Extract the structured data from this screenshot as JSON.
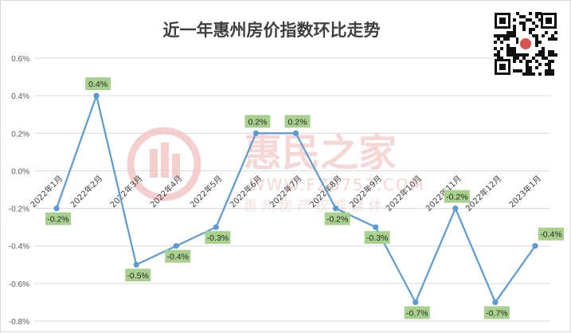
{
  "chart_data": {
    "type": "line",
    "title": "近一年惠州房价指数环比走势",
    "categories": [
      "2022年1月",
      "2022年2月",
      "2022年3月",
      "2022年4月",
      "2022年5月",
      "2022年6月",
      "2022年7月",
      "2022年8月",
      "2022年9月",
      "2022年10月",
      "2022年11月",
      "2022年12月",
      "2023年1月"
    ],
    "values": [
      -0.2,
      0.4,
      -0.5,
      -0.4,
      -0.3,
      0.2,
      0.2,
      -0.2,
      -0.3,
      -0.7,
      -0.2,
      -0.7,
      -0.4
    ],
    "data_labels": [
      "-0.2%",
      "0.4%",
      "-0.5%",
      "-0.4%",
      "-0.3%",
      "0.2%",
      "0.2%",
      "-0.2%",
      "-0.3%",
      "-0.7%",
      "-0.2%",
      "-0.7%",
      "-0.4%"
    ],
    "yticks": [
      "0.6%",
      "0.4%",
      "0.2%",
      "0.0%",
      "-0.2%",
      "-0.4%",
      "-0.6%",
      "-0.8%"
    ],
    "ylim": [
      -0.8,
      0.6
    ],
    "grid": true,
    "line_color": "#5b9bd5",
    "label_bg_color": "#a9d18e"
  },
  "watermark": {
    "brand": "惠民之家",
    "url": "WWW.FZ0752.COM",
    "slogan": "惠 州 房 产 权 威 媒 体"
  },
  "qr_icon": "qr-code-icon"
}
